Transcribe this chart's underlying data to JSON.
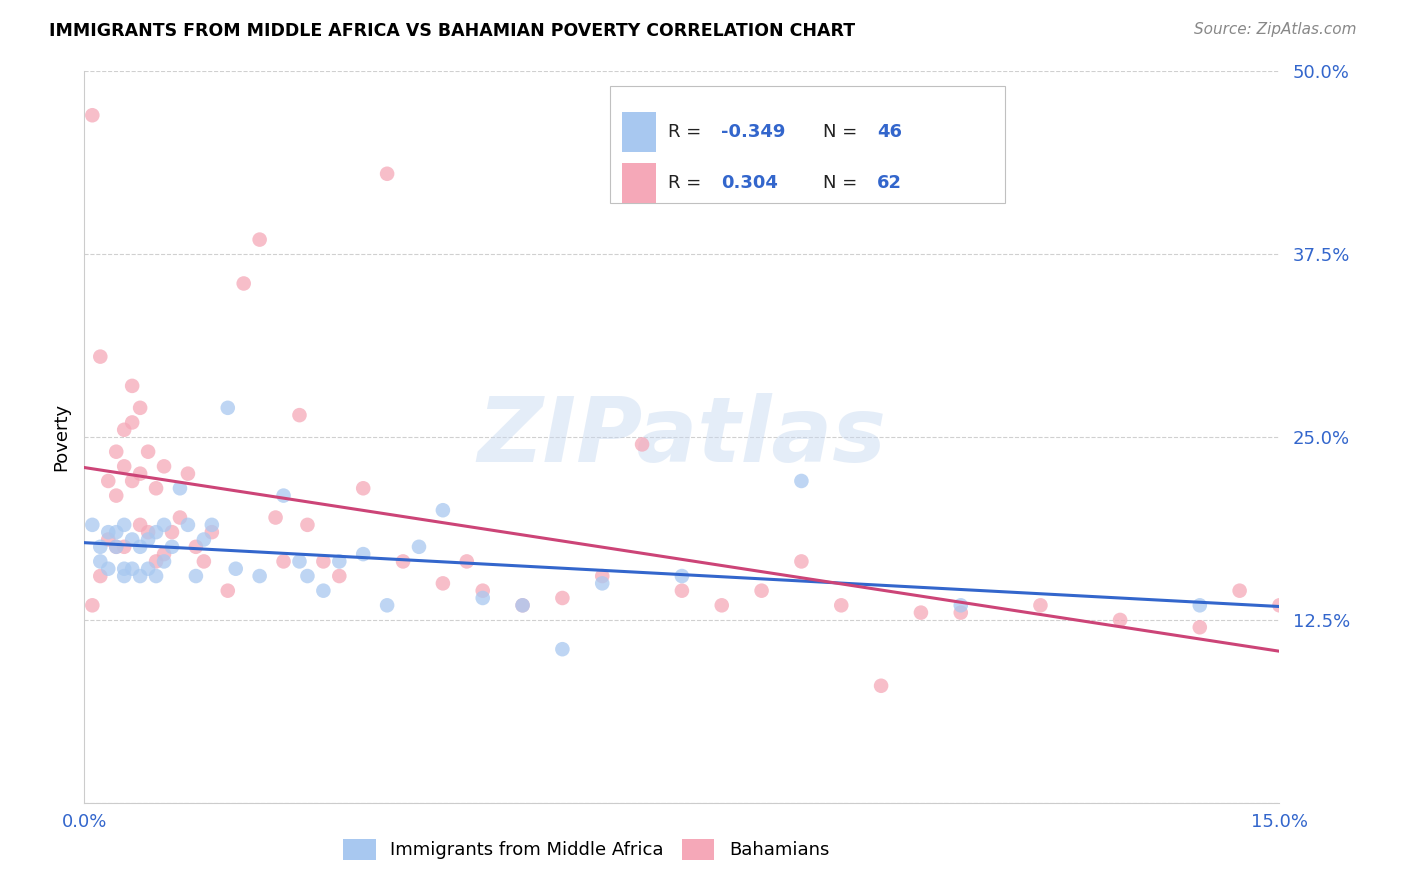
{
  "title": "IMMIGRANTS FROM MIDDLE AFRICA VS BAHAMIAN POVERTY CORRELATION CHART",
  "source": "Source: ZipAtlas.com",
  "ylabel": "Poverty",
  "x_min": 0.0,
  "x_max": 0.15,
  "y_min": 0.0,
  "y_max": 0.5,
  "x_ticks": [
    0.0,
    0.05,
    0.1,
    0.15
  ],
  "x_tick_labels": [
    "0.0%",
    "",
    "",
    "15.0%"
  ],
  "y_ticks": [
    0.0,
    0.125,
    0.25,
    0.375,
    0.5
  ],
  "y_tick_labels": [
    "",
    "12.5%",
    "25.0%",
    "37.5%",
    "50.0%"
  ],
  "blue_R": "-0.349",
  "blue_N": "46",
  "pink_R": "0.304",
  "pink_N": "62",
  "blue_color": "#a8c8f0",
  "pink_color": "#f5a8b8",
  "blue_line_color": "#3366cc",
  "pink_line_color": "#cc4477",
  "legend_label_blue": "Immigrants from Middle Africa",
  "legend_label_pink": "Bahamians",
  "watermark": "ZIPatlas",
  "background_color": "#ffffff",
  "grid_color": "#d0d0d0",
  "blue_scatter_x": [
    0.001,
    0.002,
    0.002,
    0.003,
    0.003,
    0.004,
    0.004,
    0.005,
    0.005,
    0.005,
    0.006,
    0.006,
    0.007,
    0.007,
    0.008,
    0.008,
    0.009,
    0.009,
    0.01,
    0.01,
    0.011,
    0.012,
    0.013,
    0.014,
    0.015,
    0.016,
    0.018,
    0.019,
    0.022,
    0.025,
    0.027,
    0.028,
    0.03,
    0.032,
    0.035,
    0.038,
    0.042,
    0.045,
    0.05,
    0.055,
    0.06,
    0.065,
    0.075,
    0.09,
    0.11,
    0.14
  ],
  "blue_scatter_y": [
    0.19,
    0.175,
    0.165,
    0.185,
    0.16,
    0.175,
    0.185,
    0.19,
    0.16,
    0.155,
    0.18,
    0.16,
    0.175,
    0.155,
    0.18,
    0.16,
    0.185,
    0.155,
    0.19,
    0.165,
    0.175,
    0.215,
    0.19,
    0.155,
    0.18,
    0.19,
    0.27,
    0.16,
    0.155,
    0.21,
    0.165,
    0.155,
    0.145,
    0.165,
    0.17,
    0.135,
    0.175,
    0.2,
    0.14,
    0.135,
    0.105,
    0.15,
    0.155,
    0.22,
    0.135,
    0.135
  ],
  "pink_scatter_x": [
    0.001,
    0.001,
    0.002,
    0.002,
    0.003,
    0.003,
    0.004,
    0.004,
    0.004,
    0.005,
    0.005,
    0.005,
    0.006,
    0.006,
    0.006,
    0.007,
    0.007,
    0.007,
    0.008,
    0.008,
    0.009,
    0.009,
    0.01,
    0.01,
    0.011,
    0.012,
    0.013,
    0.014,
    0.015,
    0.016,
    0.018,
    0.02,
    0.022,
    0.024,
    0.025,
    0.027,
    0.028,
    0.03,
    0.032,
    0.035,
    0.038,
    0.04,
    0.045,
    0.048,
    0.05,
    0.055,
    0.06,
    0.065,
    0.07,
    0.075,
    0.08,
    0.085,
    0.09,
    0.095,
    0.1,
    0.105,
    0.11,
    0.12,
    0.13,
    0.14,
    0.145,
    0.15
  ],
  "pink_scatter_y": [
    0.47,
    0.135,
    0.305,
    0.155,
    0.22,
    0.18,
    0.24,
    0.21,
    0.175,
    0.255,
    0.23,
    0.175,
    0.285,
    0.26,
    0.22,
    0.27,
    0.225,
    0.19,
    0.24,
    0.185,
    0.215,
    0.165,
    0.23,
    0.17,
    0.185,
    0.195,
    0.225,
    0.175,
    0.165,
    0.185,
    0.145,
    0.355,
    0.385,
    0.195,
    0.165,
    0.265,
    0.19,
    0.165,
    0.155,
    0.215,
    0.43,
    0.165,
    0.15,
    0.165,
    0.145,
    0.135,
    0.14,
    0.155,
    0.245,
    0.145,
    0.135,
    0.145,
    0.165,
    0.135,
    0.08,
    0.13,
    0.13,
    0.135,
    0.125,
    0.12,
    0.145,
    0.135
  ]
}
